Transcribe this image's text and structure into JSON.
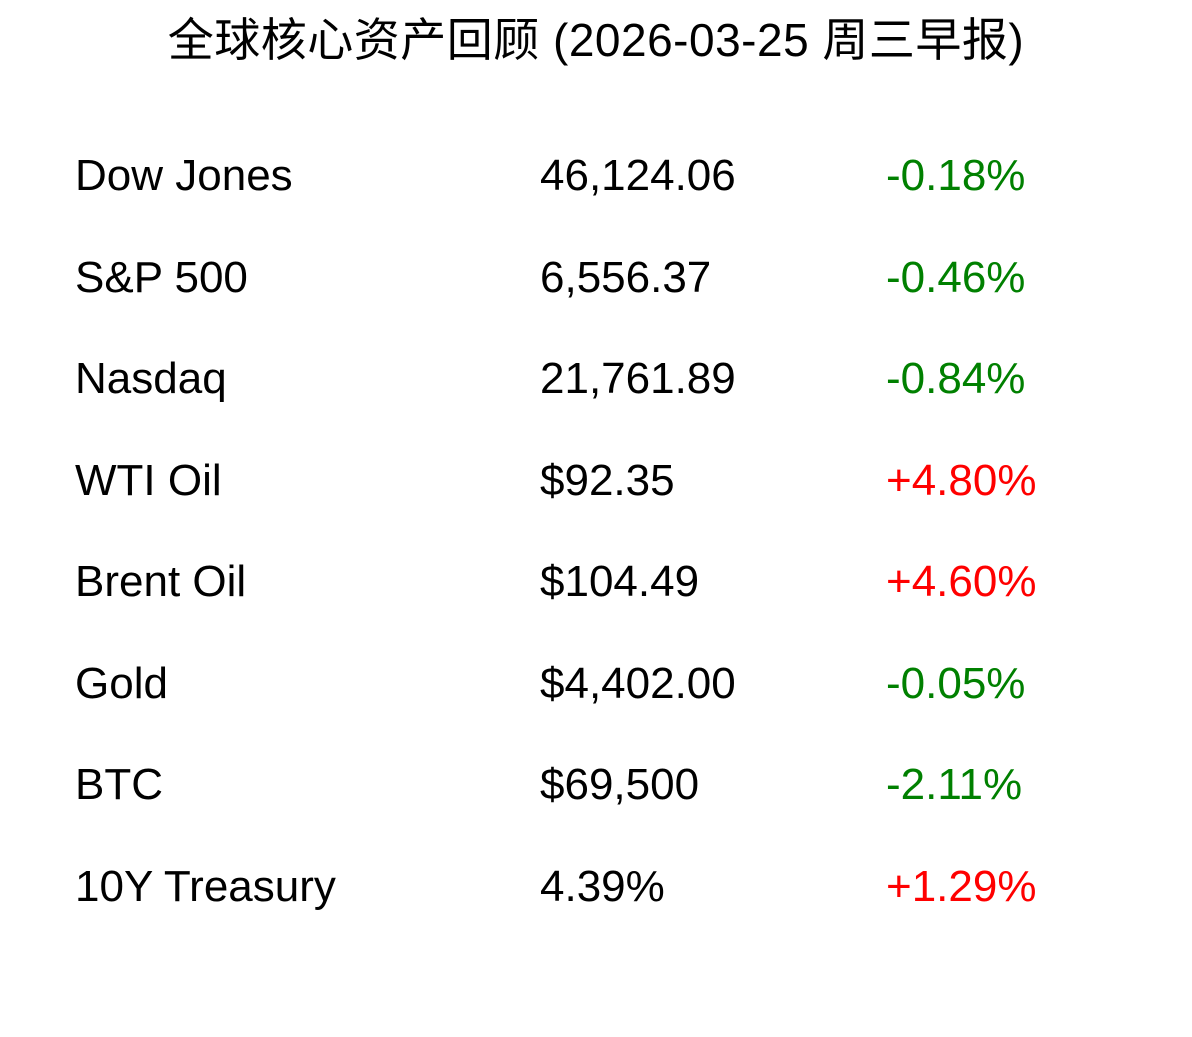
{
  "chart_data": {
    "type": "table",
    "title": "全球核心资产回顾 (2026-03-25 周三早报)",
    "columns": [
      "asset",
      "value",
      "change"
    ],
    "rows": [
      {
        "asset": "Dow Jones",
        "value": "46,124.06",
        "change": "-0.18%",
        "change_color": "#008000"
      },
      {
        "asset": "S&P 500",
        "value": "6,556.37",
        "change": "-0.46%",
        "change_color": "#008000"
      },
      {
        "asset": "Nasdaq",
        "value": "21,761.89",
        "change": "-0.84%",
        "change_color": "#008000"
      },
      {
        "asset": "WTI Oil",
        "value": "$92.35",
        "change": "+4.80%",
        "change_color": "#ff0000"
      },
      {
        "asset": "Brent Oil",
        "value": "$104.49",
        "change": "+4.60%",
        "change_color": "#ff0000"
      },
      {
        "asset": "Gold",
        "value": "$4,402.00",
        "change": "-0.05%",
        "change_color": "#008000"
      },
      {
        "asset": "BTC",
        "value": "$69,500",
        "change": "-2.11%",
        "change_color": "#008000"
      },
      {
        "asset": "10Y Treasury",
        "value": "4.39%",
        "change": "+1.29%",
        "change_color": "#ff0000"
      }
    ],
    "colors": {
      "positive_change": "#ff0000",
      "negative_change": "#008000",
      "text": "#000000",
      "background": "#ffffff"
    },
    "layout": {
      "legend": "none",
      "grid": "off"
    }
  }
}
